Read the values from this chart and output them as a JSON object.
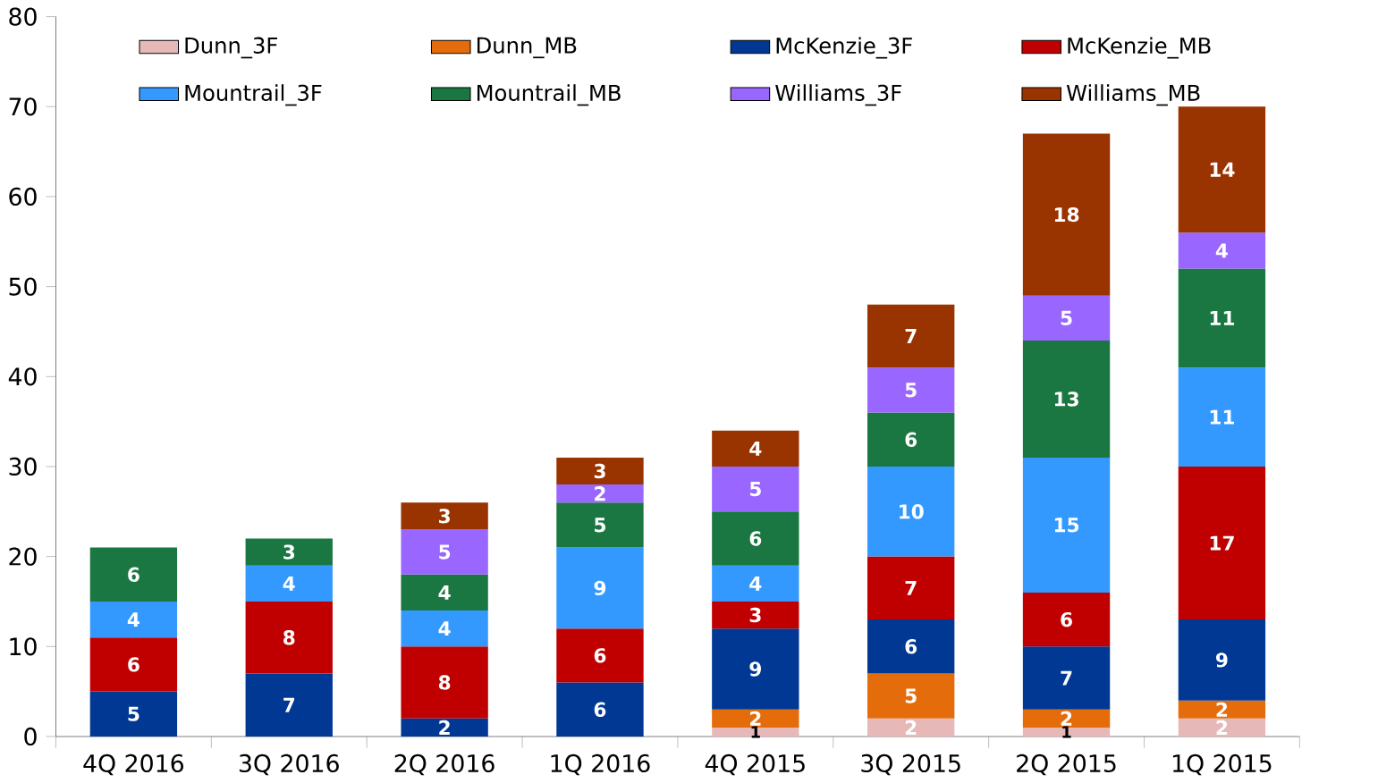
{
  "chart_data": {
    "type": "bar",
    "stacked": true,
    "data_labels": true,
    "grid": false,
    "legend": "top",
    "categories": [
      "4Q 2016",
      "3Q 2016",
      "2Q 2016",
      "1Q 2016",
      "4Q 2015",
      "3Q 2015",
      "2Q 2015",
      "1Q 2015"
    ],
    "ylim": [
      0,
      80
    ],
    "yticks": [
      0,
      10,
      20,
      30,
      40,
      50,
      60,
      70,
      80
    ],
    "series": [
      {
        "name": "Dunn_3F",
        "color": "#e6b9b8",
        "values": [
          null,
          null,
          null,
          null,
          1,
          2,
          1,
          2
        ]
      },
      {
        "name": "Dunn_MB",
        "color": "#e46c0a",
        "values": [
          null,
          null,
          null,
          null,
          2,
          5,
          2,
          2
        ]
      },
      {
        "name": "McKenzie_3F",
        "color": "#003893",
        "values": [
          5,
          7,
          2,
          6,
          9,
          6,
          7,
          9
        ]
      },
      {
        "name": "McKenzie_MB",
        "color": "#c00000",
        "values": [
          6,
          8,
          8,
          6,
          3,
          7,
          6,
          17
        ]
      },
      {
        "name": "Mountrail_3F",
        "color": "#3399ff",
        "values": [
          4,
          4,
          4,
          9,
          4,
          10,
          15,
          11
        ]
      },
      {
        "name": "Mountrail_MB",
        "color": "#1b7742",
        "values": [
          6,
          3,
          4,
          5,
          6,
          6,
          13,
          11
        ]
      },
      {
        "name": "Williams_3F",
        "color": "#9966ff",
        "values": [
          null,
          null,
          5,
          2,
          5,
          5,
          5,
          4
        ]
      },
      {
        "name": "Williams_MB",
        "color": "#993300",
        "values": [
          null,
          null,
          3,
          3,
          4,
          7,
          18,
          14
        ]
      }
    ]
  }
}
